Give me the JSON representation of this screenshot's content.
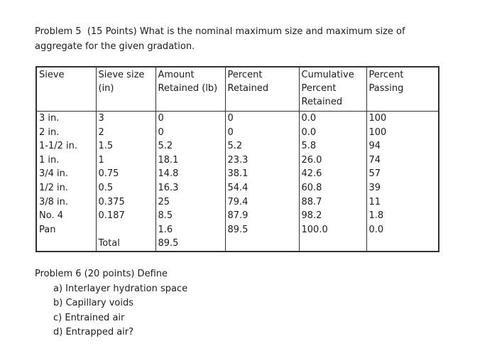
{
  "problem5": {
    "text": "Problem 5  (15 Points) What is the nominal maximum size and maximum size of\naggregate for the given gradation."
  },
  "table": {
    "headers": [
      "Sieve",
      "Sieve size (in)",
      "Amount Retained (lb)",
      "Percent Retained",
      "Cumulative Percent Retained",
      "Percent Passing"
    ],
    "rows": [
      [
        "3 in.",
        "3",
        "0",
        "0",
        "0.0",
        "100"
      ],
      [
        "2 in.",
        "2",
        "0",
        "0",
        "0.0",
        "100"
      ],
      [
        "1-1/2 in.",
        "1.5",
        "5.2",
        "5.2",
        "5.8",
        "94"
      ],
      [
        "1 in.",
        "1",
        "18.1",
        "23.3",
        "26.0",
        "74"
      ],
      [
        "3/4 in.",
        "0.75",
        "14.8",
        "38.1",
        "42.6",
        "57"
      ],
      [
        "1/2 in.",
        "0.5",
        "16.3",
        "54.4",
        "60.8",
        "39"
      ],
      [
        "3/8 in.",
        "0.375",
        "25",
        "79.4",
        "88.7",
        "11"
      ],
      [
        "No. 4",
        "0.187",
        "8.5",
        "87.9",
        "98.2",
        "1.8"
      ],
      [
        "Pan",
        "",
        "1.6",
        "89.5",
        "100.0",
        "0.0"
      ],
      [
        "",
        "Total",
        "89.5",
        "",
        "",
        ""
      ]
    ]
  },
  "problem6": {
    "heading": "Problem 6 (20 points) Define",
    "items": [
      "a) Interlayer hydration space",
      "b) Capillary voids",
      "c) Entrained air",
      "d) Entrapped air?"
    ]
  }
}
